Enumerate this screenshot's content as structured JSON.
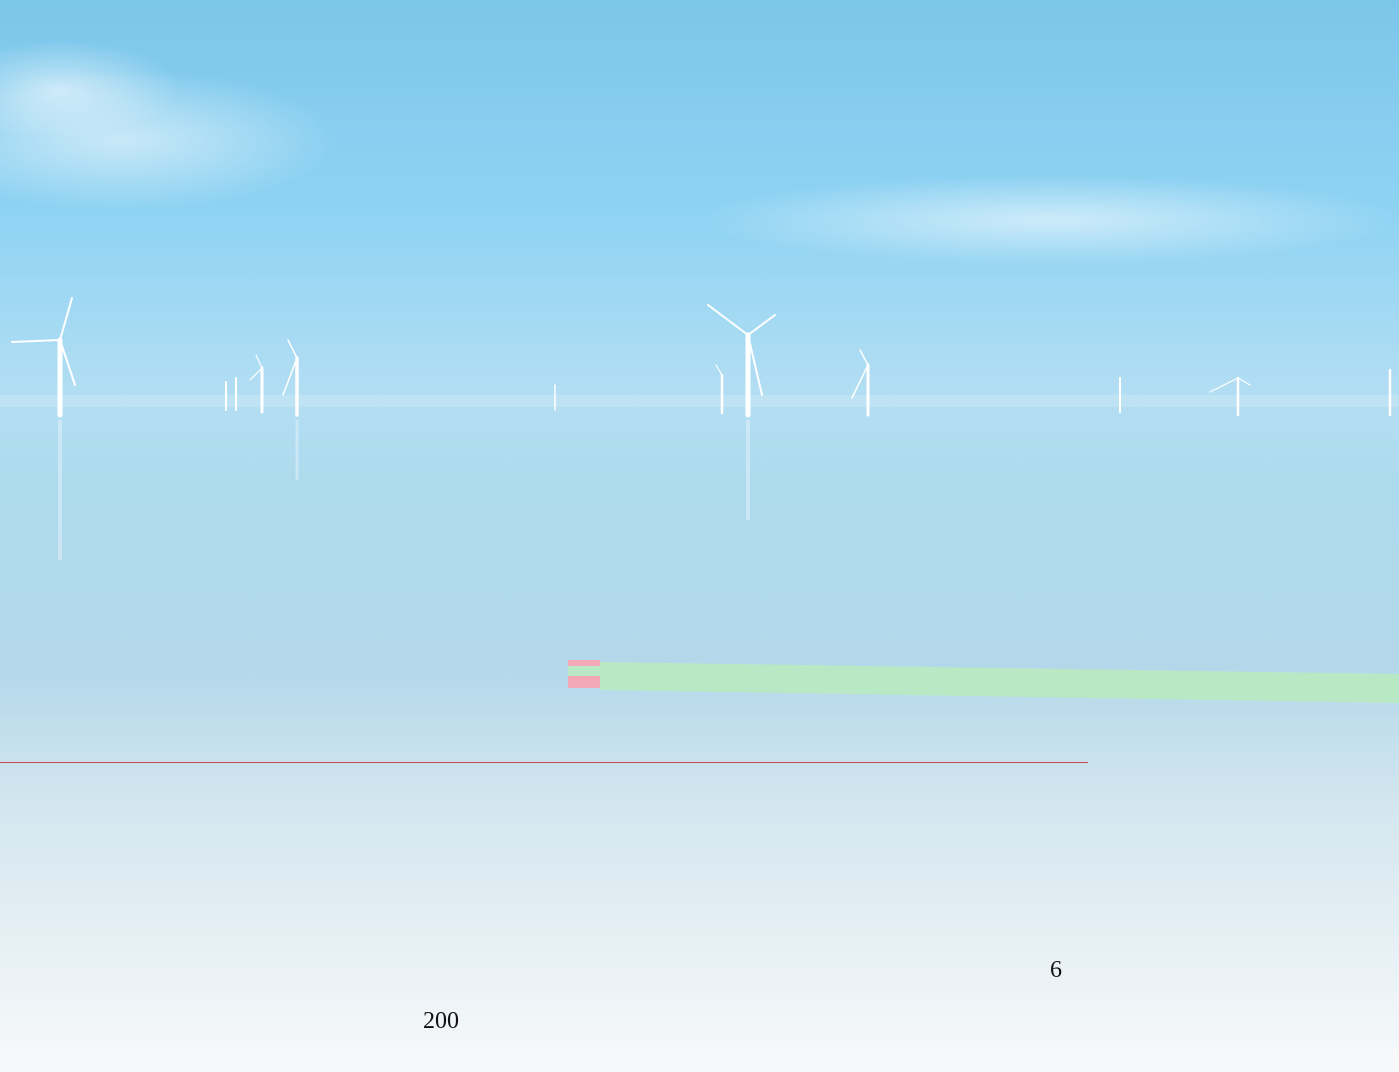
{
  "cover": {
    "right_number": "6",
    "left_number": "200"
  }
}
